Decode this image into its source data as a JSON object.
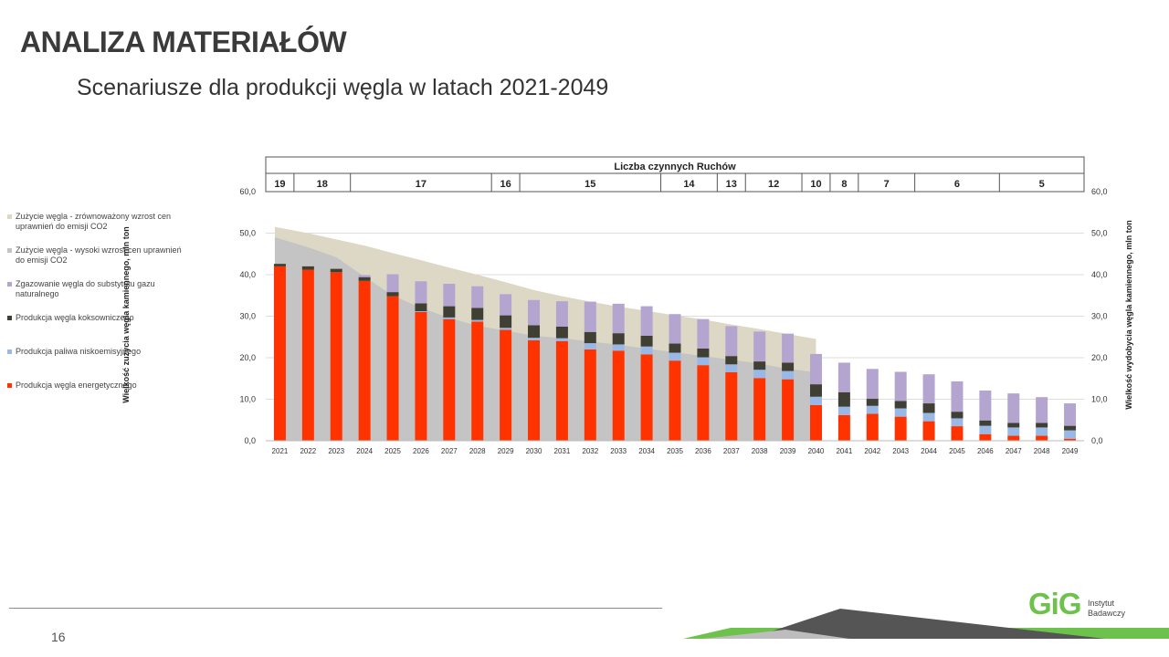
{
  "slide": {
    "title": "ANALIZA MATERIAŁÓW",
    "subtitle": "Scenariusze dla produkcji węgla w latach 2021-2049",
    "page_number": "16",
    "logo_mark": "GiG",
    "logo_text_1": "Instytut",
    "logo_text_2": "Badawczy"
  },
  "chart_data": {
    "type": "bar",
    "stacked": true,
    "title": "Liczba czynnych Ruchów",
    "ylabel_left": "Wielkość zużycia węgla kamiennego, mln ton",
    "ylabel_right": "Wielkość wydobycia węgla kamiennego, mln ton",
    "ylim": [
      0,
      60
    ],
    "yticks": [
      "0,0",
      "10,0",
      "20,0",
      "30,0",
      "40,0",
      "50,0",
      "60,0"
    ],
    "categories": [
      "2021",
      "2022",
      "2023",
      "2024",
      "2025",
      "2026",
      "2027",
      "2028",
      "2029",
      "2030",
      "2031",
      "2032",
      "2033",
      "2034",
      "2035",
      "2036",
      "2037",
      "2038",
      "2039",
      "2040",
      "2041",
      "2042",
      "2043",
      "2044",
      "2045",
      "2046",
      "2047",
      "2048",
      "2049"
    ],
    "ruchy_header": [
      {
        "label": "19",
        "span": 1
      },
      {
        "label": "18",
        "span": 2
      },
      {
        "label": "17",
        "span": 5
      },
      {
        "label": "16",
        "span": 1
      },
      {
        "label": "15",
        "span": 5
      },
      {
        "label": "14",
        "span": 2
      },
      {
        "label": "13",
        "span": 1
      },
      {
        "label": "12",
        "span": 2
      },
      {
        "label": "10",
        "span": 1
      },
      {
        "label": "8",
        "span": 1
      },
      {
        "label": "7",
        "span": 2
      },
      {
        "label": "6",
        "span": 3
      },
      {
        "label": "5",
        "span": 3
      }
    ],
    "series": [
      {
        "name": "Produkcja węgla energetycznego",
        "color": "#ff3300",
        "values": [
          42.0,
          41.2,
          40.6,
          38.5,
          34.8,
          31.0,
          29.3,
          28.7,
          26.7,
          24.2,
          24.0,
          22.0,
          21.7,
          20.8,
          19.3,
          18.2,
          16.5,
          15.1,
          14.8,
          8.6,
          6.2,
          6.5,
          5.8,
          4.7,
          3.5,
          1.6,
          1.2,
          1.2,
          0.5
        ]
      },
      {
        "name": "Produkcja paliwa niskoemisyjnego",
        "color": "#9ab8e6",
        "values": [
          0.0,
          0.0,
          0.0,
          0.0,
          0.0,
          0.2,
          0.4,
          0.4,
          0.5,
          0.6,
          0.7,
          1.5,
          1.5,
          1.9,
          1.9,
          1.9,
          1.9,
          2.0,
          2.0,
          2.0,
          2.0,
          1.9,
          2.0,
          2.0,
          1.9,
          2.0,
          2.0,
          2.0,
          2.0
        ]
      },
      {
        "name": "Produkcja węgla koksowniczego",
        "color": "#3f3f33",
        "values": [
          0.6,
          0.8,
          0.8,
          0.9,
          1.0,
          1.9,
          2.7,
          2.9,
          3.0,
          3.0,
          2.8,
          2.7,
          2.7,
          2.6,
          2.2,
          2.1,
          2.0,
          2.0,
          2.0,
          3.0,
          3.5,
          1.7,
          1.8,
          2.3,
          1.6,
          1.3,
          1.1,
          1.1,
          1.1
        ]
      },
      {
        "name": "Zgazowanie węgla do substytutu gazu naturalnego",
        "color": "#b3a5cf",
        "values": [
          0.0,
          0.0,
          0.0,
          0.5,
          4.3,
          5.3,
          5.4,
          5.2,
          5.1,
          6.1,
          6.1,
          7.3,
          7.1,
          7.1,
          7.1,
          7.1,
          7.2,
          7.2,
          7.0,
          7.3,
          7.1,
          7.2,
          7.0,
          7.0,
          7.3,
          7.2,
          7.1,
          6.2,
          5.4
        ]
      }
    ],
    "areas": [
      {
        "name": "Zużycie węgla - zrównoważony wzrost cen uprawnień do emisji CO2",
        "color": "#ddd8c6",
        "values": [
          51.5,
          50.0,
          48.5,
          47.0,
          45.2,
          43.5,
          41.7,
          40.0,
          38.2,
          36.3,
          34.8,
          33.5,
          32.3,
          31.3,
          30.2,
          29.2,
          28.0,
          26.9,
          25.7,
          24.5
        ]
      },
      {
        "name": "Zużycie węgla - wysoki wzrost cen uprawnień do emisji CO2",
        "color": "#c4c4c4",
        "values": [
          49.0,
          46.6,
          44.2,
          39.5,
          35.0,
          32.0,
          29.6,
          27.7,
          26.5,
          25.3,
          24.7,
          23.9,
          23.1,
          22.2,
          21.3,
          20.4,
          19.5,
          18.6,
          17.3,
          16.5
        ]
      }
    ],
    "legend_order": [
      {
        "name": "Zużycie węgla - zrównoważony wzrost cen uprawnień do emisji CO2",
        "color": "#ddd8c6"
      },
      {
        "name": "Zużycie węgla - wysoki wzrost cen uprawnień do emisji CO2",
        "color": "#c4c4c4"
      },
      {
        "name": "Zgazowanie węgla do substytutu gazu naturalnego",
        "color": "#b3a5cf"
      },
      {
        "name": "Produkcja węgla koksowniczego",
        "color": "#3f3f33"
      },
      {
        "name": "Produkcja paliwa niskoemisyjnego",
        "color": "#9ab8e6"
      },
      {
        "name": "Produkcja węgla energetycznego",
        "color": "#ff3300"
      }
    ],
    "grid": true
  }
}
